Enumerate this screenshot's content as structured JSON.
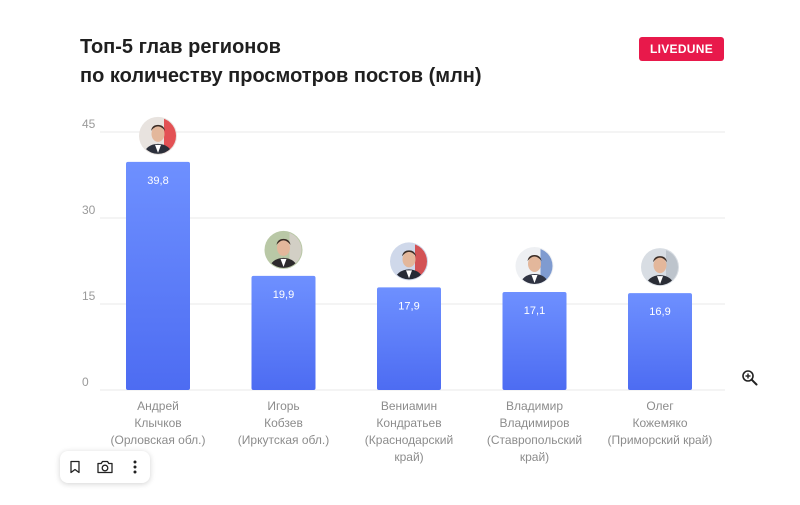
{
  "header": {
    "title_line1": "Топ-5 глав регионов",
    "title_line2": "по количеству просмотров постов (млн)",
    "brand_badge": "LIVEDUNE"
  },
  "colors": {
    "bar_top": "#6e90ff",
    "bar_bottom": "#4d6cf2",
    "brand": "#e8194b",
    "grid": "#e8e8e8",
    "axis_text": "#9a9a9a",
    "category_text": "#8c8c8c"
  },
  "toolbar": {
    "icons": [
      "bookmark-icon",
      "camera-icon",
      "more-vertical-icon"
    ]
  },
  "chart_data": {
    "type": "bar",
    "title": "Топ-5 глав регионов по количеству просмотров постов (млн)",
    "ylim": [
      0,
      45
    ],
    "yticks": [
      0,
      15,
      30,
      45
    ],
    "grid": true,
    "categories": [
      [
        "Андрей",
        "Клычков",
        "(Орловская обл.)"
      ],
      [
        "Игорь",
        "Кобзев",
        "(Иркутская обл.)"
      ],
      [
        "Вениамин",
        "Кондратьев",
        "(Краснодарский",
        "край)"
      ],
      [
        "Владимир",
        "Владимиров",
        "(Ставропольский",
        "край)"
      ],
      [
        "Олег",
        "Кожемяко",
        "(Приморский край)"
      ]
    ],
    "values": [
      39.8,
      19.9,
      17.9,
      17.1,
      16.9
    ],
    "value_labels": [
      "39,8",
      "19,9",
      "17,9",
      "17,1",
      "16,9"
    ]
  }
}
